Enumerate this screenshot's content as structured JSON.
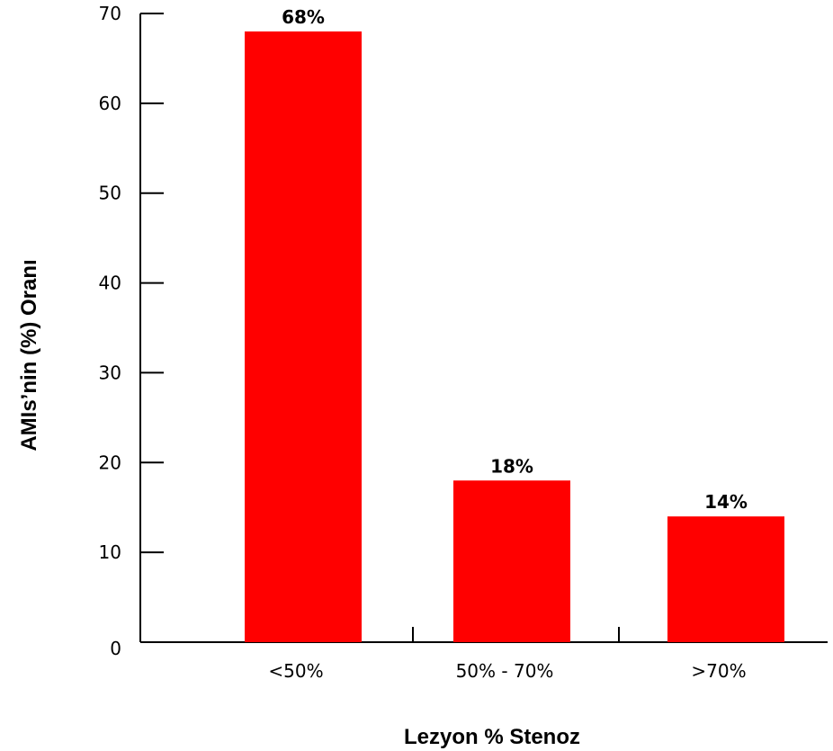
{
  "chart_data": {
    "type": "bar",
    "categories": [
      "<50%",
      "50% - 70%",
      ">70%"
    ],
    "values": [
      68,
      18,
      14
    ],
    "data_labels": [
      "68%",
      "18%",
      "14%"
    ],
    "xlabel": "Lezyon % Stenoz",
    "ylabel": "AMIs’nin (%) Oranı",
    "ylim": [
      0,
      70
    ],
    "yticks": [
      "0",
      "10",
      "20",
      "30",
      "40",
      "50",
      "60",
      "70"
    ],
    "grid": false,
    "legend": "none",
    "bar_color": "#ff0000"
  }
}
